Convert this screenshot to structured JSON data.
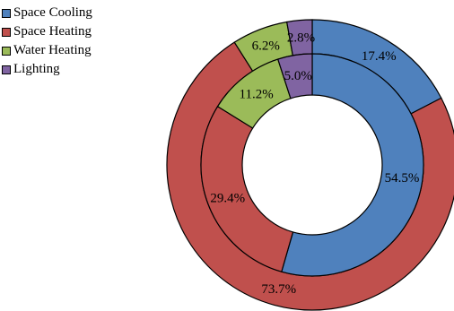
{
  "chart_data": {
    "type": "donut",
    "legend_position": "top-left",
    "legend": [
      "Space Cooling",
      "Space Heating",
      "Water Heating",
      "Lighting"
    ],
    "colors": [
      "#4f81bd",
      "#c0504d",
      "#9bbb59",
      "#8064a2"
    ],
    "series": [
      {
        "ring": "inner",
        "values": [
          54.5,
          29.4,
          11.2,
          5.0
        ],
        "labels": [
          "54.5%",
          "29.4%",
          "11.2%",
          "5.0%"
        ]
      },
      {
        "ring": "outer",
        "values": [
          17.4,
          73.7,
          6.2,
          2.8
        ],
        "labels": [
          "17.4%",
          "73.7%",
          "6.2%",
          "2.8%"
        ]
      }
    ]
  }
}
